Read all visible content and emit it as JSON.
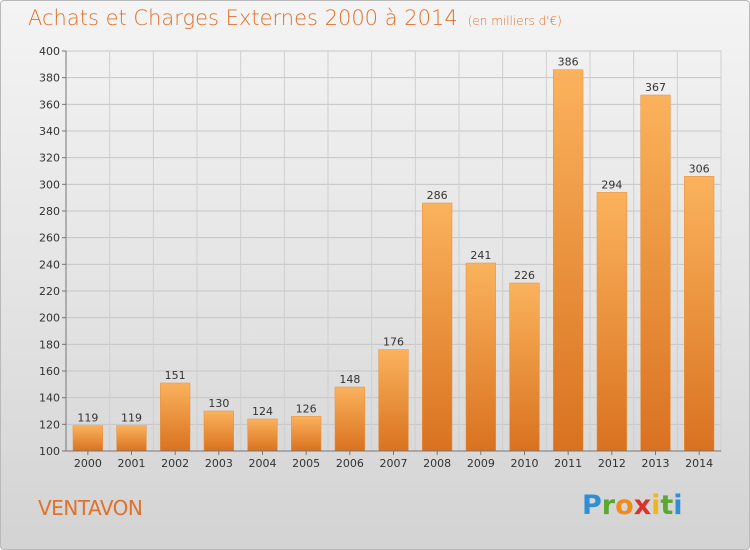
{
  "title": "Achats et Charges Externes 2000 à 2014",
  "unit": "(en milliers d'€)",
  "commune": "VENTAVON",
  "logo": {
    "letters": [
      "P",
      "r",
      "o",
      "x",
      "i",
      "t",
      "i"
    ],
    "colors": [
      "#2e8fd4",
      "#5aa832",
      "#f08a1c",
      "#d9332a",
      "#f0b51c",
      "#5aa832",
      "#2e8fd4"
    ]
  },
  "colors": {
    "bar_light": "#fbb25c",
    "bar_dark": "#d97220",
    "title": "#e0702a"
  },
  "chart_data": {
    "type": "bar",
    "categories": [
      "2000",
      "2001",
      "2002",
      "2003",
      "2004",
      "2005",
      "2006",
      "2007",
      "2008",
      "2009",
      "2010",
      "2011",
      "2012",
      "2013",
      "2014"
    ],
    "values": [
      119,
      119,
      151,
      130,
      124,
      126,
      148,
      176,
      286,
      241,
      226,
      386,
      294,
      367,
      306
    ],
    "ylim": [
      100,
      400
    ],
    "yticks": [
      100,
      120,
      140,
      160,
      180,
      200,
      220,
      240,
      260,
      280,
      300,
      320,
      340,
      360,
      380,
      400
    ],
    "grid": true,
    "xlabel": "",
    "ylabel": ""
  }
}
